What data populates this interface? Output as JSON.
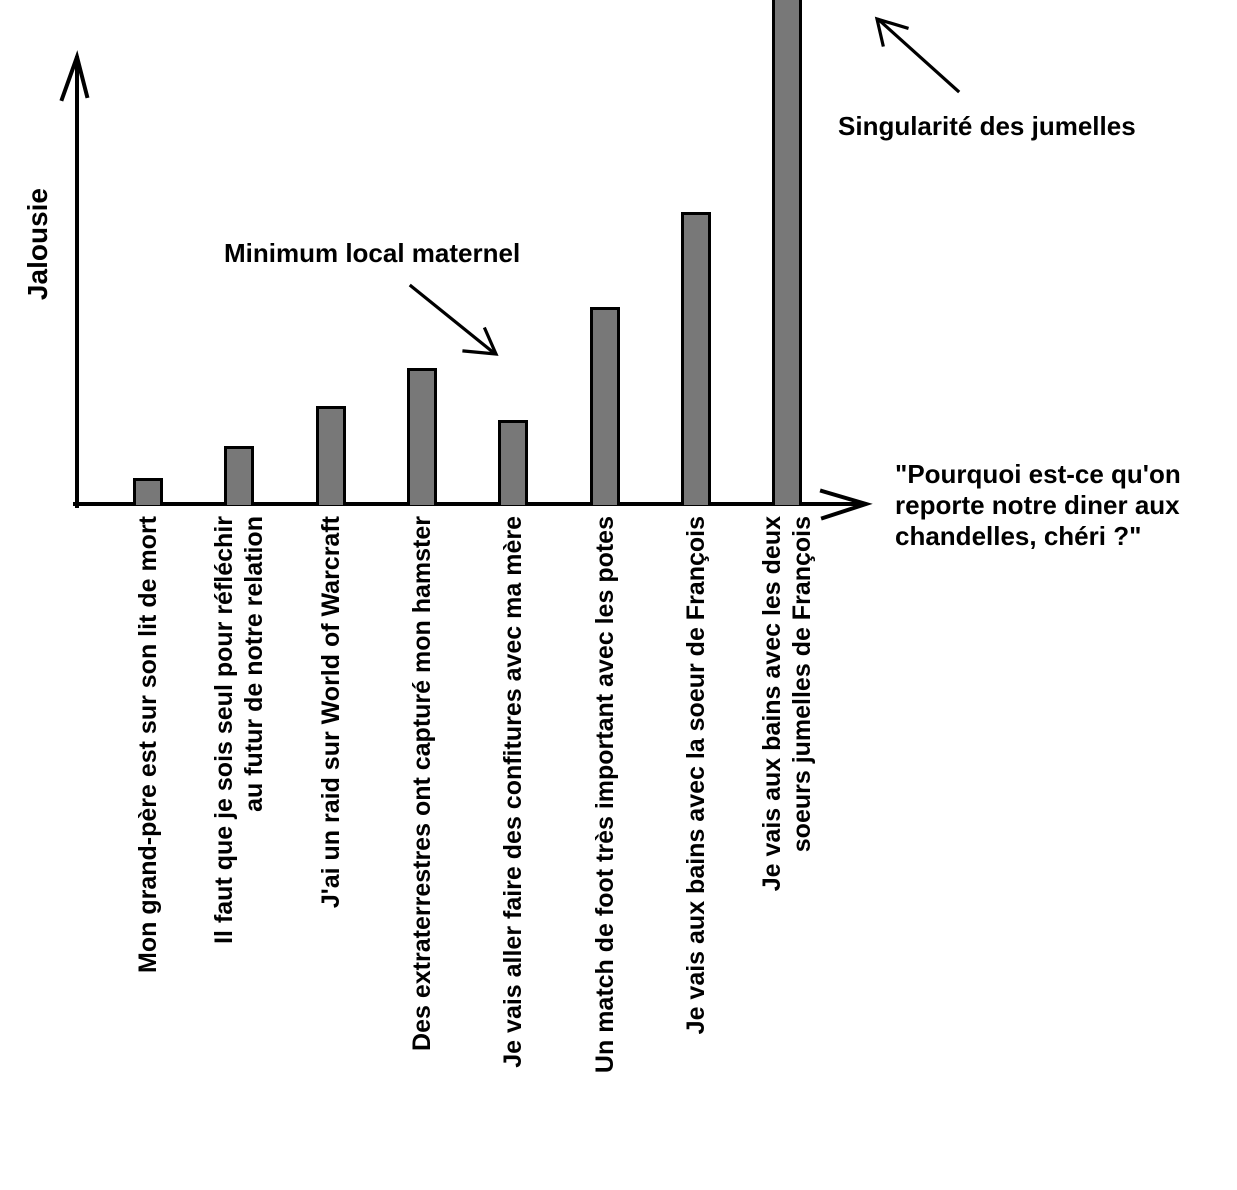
{
  "chart_data": {
    "type": "bar",
    "title": "",
    "ylabel": "Jalousie",
    "xlabel": "\"Pourquoi est-ce qu'on\nreporte notre diner aux\nchandelles, chéri ?\"",
    "categories": [
      "Mon grand-père est sur son lit de mort",
      "Il faut que je sois seul pour réfléchir\nau futur de notre relation",
      "J'ai un raid sur World of Warcraft",
      "Des extraterrestres ont capturé mon hamster",
      "Je vais aller faire des confitures avec ma mère",
      "Un match de foot très important avec les potes",
      "Je vais aux bains avec la soeur de François",
      "Je vais aux bains avec les deux\nsoeurs jumelles de François"
    ],
    "values": [
      27,
      59,
      99,
      137,
      85,
      198,
      293,
      511
    ],
    "values_note": "no numeric axis shown; values are relative bar heights in pixels, 8th bar runs off the top of the chart",
    "offscale_bar_index": 7,
    "axis_ticks": "none",
    "grid": false,
    "legend": "none",
    "annotations": [
      {
        "text": "Minimum local maternel",
        "points_to": "bar 5 (local minimum)"
      },
      {
        "text": "Singularité des jumelles",
        "points_to": "bar 8 (off-scale)"
      }
    ],
    "colors": {
      "bar_fill": "#787878",
      "bar_border": "#000000",
      "text": "#000000",
      "background": "#ffffff"
    }
  }
}
